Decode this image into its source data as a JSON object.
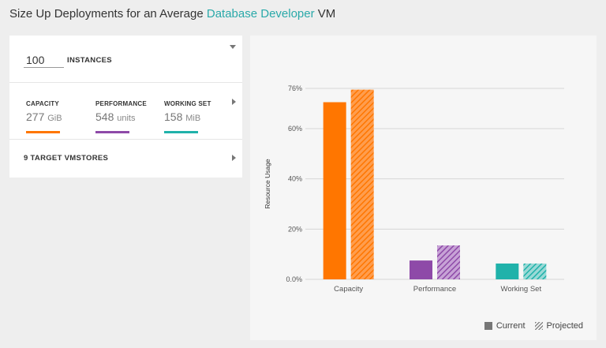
{
  "title": {
    "prefix": "Size Up Deployments for an Average ",
    "highlight": "Database Developer",
    "suffix": " VM"
  },
  "instances": {
    "value": "100",
    "label": "INSTANCES"
  },
  "metrics": [
    {
      "label": "CAPACITY",
      "value": "277",
      "unit": "GiB",
      "color": "#ff7600"
    },
    {
      "label": "PERFORMANCE",
      "value": "548",
      "unit": "units",
      "color": "#8e4aa8"
    },
    {
      "label": "WORKING SET",
      "value": "158",
      "unit": "MiB",
      "color": "#20b2aa"
    }
  ],
  "targets": {
    "label": "9 TARGET VMSTORES"
  },
  "legend": {
    "current": "Current",
    "projected": "Projected"
  },
  "chart_data": {
    "type": "bar",
    "ylabel": "Resource Usage",
    "xlabel": "",
    "ylim": [
      0,
      76
    ],
    "y_ticks": [
      {
        "label": "0.0%",
        "value": 0
      },
      {
        "label": "20%",
        "value": 20
      },
      {
        "label": "40%",
        "value": 40
      },
      {
        "label": "60%",
        "value": 60
      },
      {
        "label": "76%",
        "value": 76
      }
    ],
    "categories": [
      "Capacity",
      "Performance",
      "Working Set"
    ],
    "colors": [
      "#ff7600",
      "#8e4aa8",
      "#20b2aa"
    ],
    "series": [
      {
        "name": "Current",
        "values": [
          70.5,
          7.5,
          6.3
        ]
      },
      {
        "name": "Projected",
        "values": [
          75.5,
          13.5,
          6.3
        ]
      }
    ],
    "legend_position": "bottom-right",
    "grid": true
  }
}
